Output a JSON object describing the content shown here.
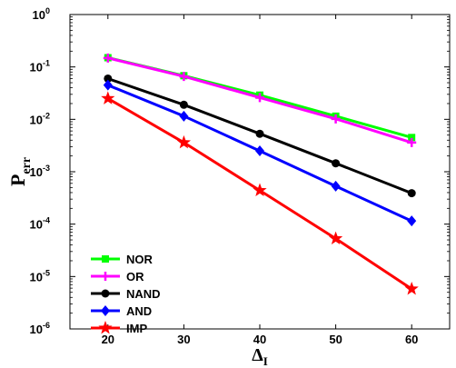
{
  "chart_data": {
    "type": "line",
    "xlabel": {
      "base": "Δ",
      "sub": "I"
    },
    "ylabel": {
      "base": "P",
      "sub": "err"
    },
    "xlim": [
      15,
      65
    ],
    "ylim": [
      1e-06,
      1
    ],
    "yscale": "log",
    "grid": false,
    "legend_position": "lower-left",
    "x_ticks": [
      "20",
      "30",
      "40",
      "50",
      "60"
    ],
    "y_ticks": [
      {
        "value": 1,
        "base": "10",
        "exp": "0"
      },
      {
        "value": 0.1,
        "base": "10",
        "exp": "-1"
      },
      {
        "value": 0.01,
        "base": "10",
        "exp": "-2"
      },
      {
        "value": 0.001,
        "base": "10",
        "exp": "-3"
      },
      {
        "value": 0.0001,
        "base": "10",
        "exp": "-4"
      },
      {
        "value": 1e-05,
        "base": "10",
        "exp": "-5"
      },
      {
        "value": 1e-06,
        "base": "10",
        "exp": "-6"
      }
    ],
    "x": [
      20,
      30,
      40,
      50,
      60
    ],
    "series": [
      {
        "name": "NOR",
        "color": "#00ff00",
        "marker": "square",
        "values": [
          0.15,
          0.068,
          0.029,
          0.0115,
          0.0045
        ]
      },
      {
        "name": "OR",
        "color": "#ff00ff",
        "marker": "plus",
        "values": [
          0.148,
          0.066,
          0.026,
          0.0102,
          0.0036
        ]
      },
      {
        "name": "NAND",
        "color": "#000000",
        "marker": "circle",
        "values": [
          0.06,
          0.019,
          0.0053,
          0.00145,
          0.00039
        ]
      },
      {
        "name": "AND",
        "color": "#0000ff",
        "marker": "diamond",
        "values": [
          0.045,
          0.0115,
          0.0025,
          0.00053,
          0.000115
        ]
      },
      {
        "name": "IMP",
        "color": "#ff0000",
        "marker": "star",
        "values": [
          0.025,
          0.0036,
          0.00044,
          5.3e-05,
          5.8e-06
        ]
      }
    ]
  }
}
